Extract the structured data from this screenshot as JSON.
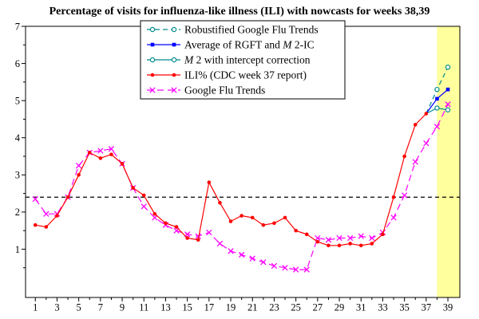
{
  "chart_data": {
    "type": "line",
    "title": "Percentage of visits for influenza-like illness (ILI) with nowcasts for weeks 38,39",
    "xlabel": "",
    "ylabel": "",
    "xlim": [
      0.1,
      40.1
    ],
    "ylim": [
      -0.3,
      7
    ],
    "x_major_ticks": [
      1,
      3,
      5,
      7,
      9,
      11,
      13,
      15,
      17,
      19,
      21,
      23,
      25,
      27,
      29,
      31,
      33,
      35,
      37,
      39
    ],
    "x_minor_ticks": [
      2,
      4,
      6,
      8,
      10,
      12,
      14,
      16,
      18,
      20,
      22,
      24,
      26,
      28,
      30,
      32,
      34,
      36,
      38
    ],
    "y_major_ticks": [
      1,
      2,
      3,
      4,
      5,
      6,
      7
    ],
    "y_minor_ticks": [
      0.5,
      1.5,
      2.5,
      3.5,
      4.5,
      5.5,
      6.5
    ],
    "grid": "off",
    "baseline": {
      "value": 2.4,
      "color": "#000000",
      "style": "dashed"
    },
    "highlight_band": {
      "from_week": 38,
      "color": "#ffff9e"
    },
    "series": [
      {
        "id": "gft",
        "name": "Google Flu Trends",
        "color": "#ff00ff",
        "line": "dashed",
        "marker": "x",
        "skip_first_marker": false,
        "weeks": [
          1,
          2,
          3,
          4,
          5,
          6,
          7,
          8,
          9,
          10,
          11,
          12,
          13,
          14,
          15,
          16,
          17,
          18,
          19,
          20,
          21,
          22,
          23,
          24,
          25,
          26,
          27,
          28,
          29,
          30,
          31,
          32,
          33,
          34,
          35,
          36,
          37,
          38,
          39
        ],
        "values": [
          2.35,
          1.95,
          1.95,
          2.4,
          3.25,
          3.6,
          3.65,
          3.7,
          3.3,
          2.65,
          2.15,
          1.85,
          1.65,
          1.5,
          1.4,
          1.35,
          1.45,
          1.15,
          0.95,
          0.85,
          0.75,
          0.65,
          0.55,
          0.5,
          0.45,
          0.45,
          1.3,
          1.25,
          1.3,
          1.3,
          1.35,
          1.3,
          1.45,
          1.85,
          2.45,
          3.35,
          3.85,
          4.3,
          4.9
        ]
      },
      {
        "id": "rgft",
        "name": "Robustified Google Flu Trends",
        "color": "#008b8b",
        "line": "dashed",
        "marker": "circle-open",
        "skip_first_marker": true,
        "weeks": [
          37,
          38,
          39
        ],
        "values": [
          4.65,
          5.3,
          5.9
        ]
      },
      {
        "id": "avg",
        "name": "Average of RGFT and M 2-IC",
        "color": "#0000ff",
        "line": "solid",
        "marker": "square",
        "skip_first_marker": true,
        "weeks": [
          37,
          38,
          39
        ],
        "values": [
          4.65,
          5.05,
          5.3
        ]
      },
      {
        "id": "m2ic",
        "name": "M 2 with intercept correction",
        "color": "#008b8b",
        "line": "solid",
        "marker": "circle-open",
        "skip_first_marker": true,
        "weeks": [
          37,
          38,
          39
        ],
        "values": [
          4.65,
          4.8,
          4.75
        ]
      },
      {
        "id": "ili",
        "name": "ILI% (CDC week 37 report)",
        "color": "#ff0000",
        "line": "solid",
        "marker": "dot",
        "skip_first_marker": false,
        "weeks": [
          1,
          2,
          3,
          4,
          5,
          6,
          7,
          8,
          9,
          10,
          11,
          12,
          13,
          14,
          15,
          16,
          17,
          18,
          19,
          20,
          21,
          22,
          23,
          24,
          25,
          26,
          27,
          28,
          29,
          30,
          31,
          32,
          33,
          34,
          35,
          36,
          37
        ],
        "values": [
          1.65,
          1.6,
          1.9,
          2.4,
          3.0,
          3.6,
          3.45,
          3.55,
          3.3,
          2.65,
          2.45,
          1.95,
          1.7,
          1.6,
          1.3,
          1.25,
          2.8,
          2.25,
          1.75,
          1.9,
          1.85,
          1.65,
          1.7,
          1.85,
          1.5,
          1.4,
          1.2,
          1.1,
          1.1,
          1.15,
          1.1,
          1.15,
          1.4,
          2.4,
          3.5,
          4.35,
          4.65
        ]
      }
    ],
    "legend": {
      "position": "top-center",
      "entries": [
        {
          "series": "rgft",
          "parts": [
            {
              "t": "Robustified Google Flu Trends",
              "i": false
            }
          ]
        },
        {
          "series": "avg",
          "parts": [
            {
              "t": "Average of RGFT and ",
              "i": false
            },
            {
              "t": "M",
              "i": true
            },
            {
              "t": " 2-IC",
              "i": false
            }
          ]
        },
        {
          "series": "m2ic",
          "parts": [
            {
              "t": "M",
              "i": true
            },
            {
              "t": " 2 with intercept correction",
              "i": false
            }
          ]
        },
        {
          "series": "ili",
          "parts": [
            {
              "t": "ILI% (CDC week 37 report)",
              "i": false
            }
          ]
        },
        {
          "series": "gft",
          "parts": [
            {
              "t": "Google Flu Trends",
              "i": false
            }
          ]
        }
      ]
    }
  }
}
